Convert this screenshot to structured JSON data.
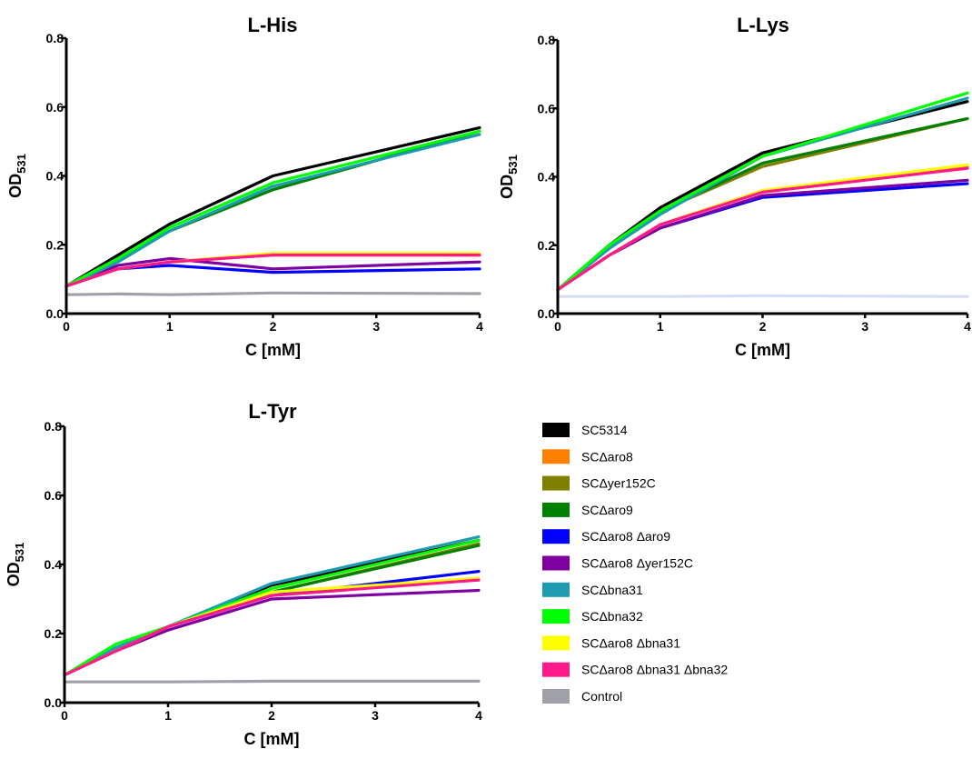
{
  "legend": [
    {
      "name": "SC5314",
      "color": "#000000"
    },
    {
      "name": "SCΔaro8",
      "color": "#ff7f00"
    },
    {
      "name": "SCΔyer152C",
      "color": "#808000"
    },
    {
      "name": "SCΔaro9",
      "color": "#008000"
    },
    {
      "name": "SCΔaro8 Δaro9",
      "color": "#0000ff"
    },
    {
      "name": "SCΔaro8 Δyer152C",
      "color": "#7f00a0"
    },
    {
      "name": "SCΔbna31",
      "color": "#1f9bb0"
    },
    {
      "name": "SCΔbna32",
      "color": "#00ff00"
    },
    {
      "name": "SCΔaro8 Δbna31",
      "color": "#ffff00"
    },
    {
      "name": "SCΔaro8 Δbna31 Δbna32",
      "color": "#ff1a8c"
    },
    {
      "name": "Control",
      "color": "#a0a0a8"
    }
  ],
  "chart_data": [
    {
      "type": "line",
      "title": "L-His",
      "xlabel": "C [mM]",
      "ylabel_main": "OD",
      "ylabel_sub": "531",
      "xlim": [
        0,
        4
      ],
      "ylim": [
        0,
        0.8
      ],
      "xticks": [
        0,
        1,
        2,
        3,
        4
      ],
      "yticks": [
        0.0,
        0.2,
        0.4,
        0.6,
        0.8
      ],
      "x": [
        0,
        0.5,
        1,
        2,
        4
      ],
      "series": [
        {
          "name": "SC5314",
          "color": "#000000",
          "values": [
            0.08,
            0.17,
            0.26,
            0.4,
            0.54
          ]
        },
        {
          "name": "SCΔaro8",
          "color": "#ff7f00",
          "values": [
            0.08,
            0.13,
            0.15,
            0.17,
            0.17
          ]
        },
        {
          "name": "SCΔyer152C",
          "color": "#808000",
          "values": [
            0.08,
            0.16,
            0.24,
            0.36,
            0.53
          ]
        },
        {
          "name": "SCΔaro9",
          "color": "#008000",
          "values": [
            0.08,
            0.16,
            0.24,
            0.36,
            0.53
          ]
        },
        {
          "name": "SCΔaro8 Δaro9",
          "color": "#0000ff",
          "values": [
            0.08,
            0.13,
            0.14,
            0.12,
            0.13
          ]
        },
        {
          "name": "SCΔaro8 Δyer152C",
          "color": "#7f00a0",
          "values": [
            0.08,
            0.14,
            0.16,
            0.13,
            0.15
          ]
        },
        {
          "name": "SCΔbna31",
          "color": "#1f9bb0",
          "values": [
            0.08,
            0.15,
            0.24,
            0.37,
            0.52
          ]
        },
        {
          "name": "SCΔbna32",
          "color": "#00ff00",
          "values": [
            0.08,
            0.16,
            0.25,
            0.38,
            0.53
          ]
        },
        {
          "name": "SCΔaro8 Δbna31",
          "color": "#ffff00",
          "values": [
            0.08,
            0.13,
            0.15,
            0.175,
            0.175
          ]
        },
        {
          "name": "SCΔaro8 Δbna31 Δbna32",
          "color": "#ff1a8c",
          "values": [
            0.08,
            0.13,
            0.15,
            0.17,
            0.17
          ]
        },
        {
          "name": "Control",
          "color": "#a0a0a8",
          "values": [
            0.055,
            0.057,
            0.055,
            0.06,
            0.058
          ]
        }
      ]
    },
    {
      "type": "line",
      "title": "L-Lys",
      "xlabel": "C [mM]",
      "ylabel_main": "OD",
      "ylabel_sub": "531",
      "xlim": [
        0,
        4
      ],
      "ylim": [
        0,
        0.8
      ],
      "xticks": [
        0,
        1,
        2,
        3,
        4
      ],
      "yticks": [
        0.0,
        0.2,
        0.4,
        0.6,
        0.8
      ],
      "x": [
        0,
        0.5,
        1,
        2,
        4
      ],
      "series": [
        {
          "name": "SC5314",
          "color": "#000000",
          "values": [
            0.07,
            0.2,
            0.31,
            0.47,
            0.62
          ]
        },
        {
          "name": "SCΔaro8",
          "color": "#ff7f00",
          "values": [
            0.07,
            0.17,
            0.26,
            0.36,
            0.43
          ]
        },
        {
          "name": "SCΔyer152C",
          "color": "#808000",
          "values": [
            0.07,
            0.19,
            0.3,
            0.43,
            0.57
          ]
        },
        {
          "name": "SCΔaro9",
          "color": "#008000",
          "values": [
            0.07,
            0.19,
            0.3,
            0.44,
            0.57
          ]
        },
        {
          "name": "SCΔaro8 Δaro9",
          "color": "#0000ff",
          "values": [
            0.07,
            0.17,
            0.25,
            0.34,
            0.38
          ]
        },
        {
          "name": "SCΔaro8 Δyer152C",
          "color": "#7f00a0",
          "values": [
            0.07,
            0.17,
            0.25,
            0.345,
            0.39
          ]
        },
        {
          "name": "SCΔbna31",
          "color": "#1f9bb0",
          "values": [
            0.07,
            0.19,
            0.29,
            0.46,
            0.63
          ]
        },
        {
          "name": "SCΔbna32",
          "color": "#00ff00",
          "values": [
            0.07,
            0.2,
            0.3,
            0.46,
            0.645
          ]
        },
        {
          "name": "SCΔaro8 Δbna31",
          "color": "#ffff00",
          "values": [
            0.07,
            0.17,
            0.26,
            0.36,
            0.435
          ]
        },
        {
          "name": "SCΔaro8 Δbna31 Δbna32",
          "color": "#ff1a8c",
          "values": [
            0.07,
            0.17,
            0.26,
            0.355,
            0.425
          ]
        },
        {
          "name": "Control",
          "color": "#d8dcf4",
          "values": [
            0.05,
            0.05,
            0.05,
            0.052,
            0.05
          ]
        }
      ]
    },
    {
      "type": "line",
      "title": "L-Tyr",
      "xlabel": "C [mM]",
      "ylabel_main": "OD",
      "ylabel_sub": "531",
      "xlim": [
        0,
        4
      ],
      "ylim": [
        0,
        0.8
      ],
      "xticks": [
        0,
        1,
        2,
        3,
        4
      ],
      "yticks": [
        0.0,
        0.2,
        0.4,
        0.6,
        0.8
      ],
      "x": [
        0,
        0.5,
        1,
        2,
        4
      ],
      "series": [
        {
          "name": "SC5314",
          "color": "#000000",
          "values": [
            0.08,
            0.15,
            0.22,
            0.34,
            0.47
          ]
        },
        {
          "name": "SCΔaro8",
          "color": "#ff7f00",
          "values": [
            0.08,
            0.15,
            0.22,
            0.32,
            0.36
          ]
        },
        {
          "name": "SCΔyer152C",
          "color": "#808000",
          "values": [
            0.08,
            0.15,
            0.22,
            0.32,
            0.46
          ]
        },
        {
          "name": "SCΔaro9",
          "color": "#008000",
          "values": [
            0.08,
            0.15,
            0.22,
            0.32,
            0.455
          ]
        },
        {
          "name": "SCΔaro8 Δaro9",
          "color": "#0000ff",
          "values": [
            0.08,
            0.15,
            0.22,
            0.31,
            0.38
          ]
        },
        {
          "name": "SCΔaro8 Δyer152C",
          "color": "#7f00a0",
          "values": [
            0.08,
            0.15,
            0.21,
            0.3,
            0.325
          ]
        },
        {
          "name": "SCΔbna31",
          "color": "#1f9bb0",
          "values": [
            0.08,
            0.16,
            0.22,
            0.345,
            0.48
          ]
        },
        {
          "name": "SCΔbna32",
          "color": "#00ff00",
          "values": [
            0.08,
            0.17,
            0.22,
            0.33,
            0.47
          ]
        },
        {
          "name": "SCΔaro8 Δbna31",
          "color": "#ffff00",
          "values": [
            0.08,
            0.15,
            0.22,
            0.32,
            0.36
          ]
        },
        {
          "name": "SCΔaro8 Δbna31 Δbna32",
          "color": "#ff1a8c",
          "values": [
            0.08,
            0.15,
            0.22,
            0.31,
            0.355
          ]
        },
        {
          "name": "Control",
          "color": "#a0a0a8",
          "values": [
            0.06,
            0.06,
            0.06,
            0.062,
            0.062
          ]
        }
      ]
    }
  ]
}
